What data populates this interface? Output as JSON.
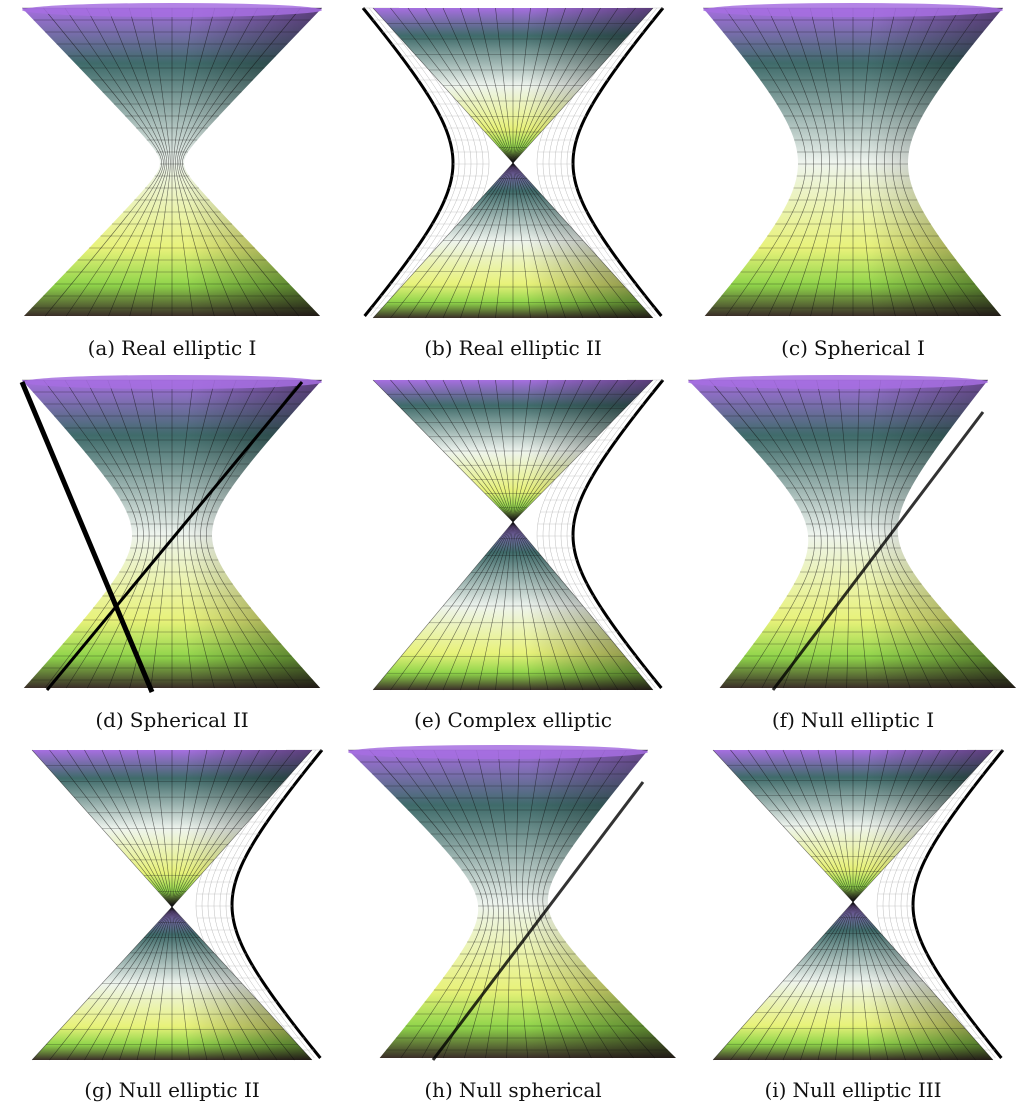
{
  "figure": {
    "panels": [
      {
        "tag": "(a)",
        "label": "Real elliptic I"
      },
      {
        "tag": "(b)",
        "label": "Real elliptic II"
      },
      {
        "tag": "(c)",
        "label": "Spherical I"
      },
      {
        "tag": "(d)",
        "label": "Spherical II"
      },
      {
        "tag": "(e)",
        "label": "Complex elliptic"
      },
      {
        "tag": "(f)",
        "label": "Null elliptic I"
      },
      {
        "tag": "(g)",
        "label": "Null elliptic II"
      },
      {
        "tag": "(h)",
        "label": "Null spherical"
      },
      {
        "tag": "(i)",
        "label": "Null elliptic III"
      }
    ],
    "colors": {
      "top": "#a66fe0",
      "teal": "#3f6b6a",
      "pale": "#eef4ee",
      "yellow": "#e8f27a",
      "green": "#8fd44a",
      "dark": "#3a2e28",
      "mesh": "#111111",
      "ghost": "#bdbdbd"
    }
  }
}
